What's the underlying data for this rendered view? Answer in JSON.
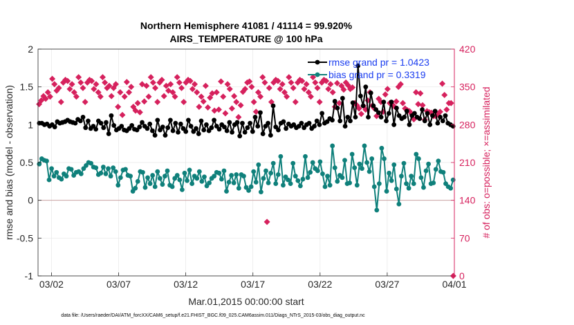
{
  "colors": {
    "rmse": "#000000",
    "bias": "#0f807b",
    "obs": "#d6215d",
    "legend_text": "#1a3df0",
    "grid": "#e6e6e6",
    "zero_line": "#c9a3a3"
  },
  "chart_data": {
    "type": "line",
    "title_line1": "Northern Hemisphere 41081 / 41114 = 99.920%",
    "title_line2": "AIRS_TEMPERATURE @ 100 hPa",
    "xlabel": "Mar.01,2015 00:00:00 start",
    "ylabel_left": "rmse and bias (model - observation)",
    "ylabel_right": "# of obs: o=possible; ×=assimilated",
    "footnote": "data file: /Users/raeder/DAI/ATM_forcXX/CAM6_setup/f.e21.FHIST_BGC.f09_025.CAM6assim.011/Diags_NTrS_2015-03/obs_diag_output.nc",
    "xlim": [
      0,
      31
    ],
    "ylim_left": [
      -1,
      2
    ],
    "ylim_right": [
      0,
      420
    ],
    "x_ticks": [
      1,
      6,
      11,
      16,
      21,
      26,
      31
    ],
    "x_tick_labels": [
      "03/02",
      "03/07",
      "03/12",
      "03/17",
      "03/22",
      "03/27",
      "04/01"
    ],
    "y_left_ticks": [
      -1,
      -0.5,
      0,
      0.5,
      1,
      1.5,
      2
    ],
    "y_left_tick_labels": [
      "-1",
      "-0.5",
      "0",
      "0.5",
      "1",
      "1.5",
      "2"
    ],
    "y_right_ticks": [
      0,
      70,
      140,
      210,
      280,
      350,
      420
    ],
    "y_right_tick_labels": [
      "0",
      "70",
      "140",
      "210",
      "280",
      "350",
      "420"
    ],
    "grid": true,
    "legend_position": "top-right",
    "legend": [
      {
        "series": "rmse",
        "label": "rmse grand pr = 1.0423"
      },
      {
        "series": "bias",
        "label": "bias grand pr = 0.3319"
      }
    ],
    "series": [
      {
        "name": "rmse",
        "axis": "left",
        "values": [
          1.02,
          1.02,
          1.0,
          1.01,
          0.98,
          1.0,
          0.97,
          1.04,
          1.02,
          1.03,
          1.04,
          1.06,
          1.04,
          1.03,
          1.02,
          1.07,
          1.05,
          1.1,
          0.96,
          1.05,
          0.95,
          0.98,
          0.94,
          1.05,
          1.02,
          0.96,
          1.03,
          0.88,
          1.12,
          0.99,
          0.93,
          0.95,
          0.98,
          0.93,
          0.92,
          0.95,
          0.99,
          0.94,
          0.93,
          0.97,
          1.03,
          0.98,
          0.95,
          1.01,
          0.92,
          0.86,
          1.06,
          0.93,
          0.97,
          0.86,
          0.96,
          1.06,
          0.92,
          1.02,
          0.9,
          1.01,
          0.95,
          0.91,
          1.06,
          0.98,
          0.91,
          0.95,
          0.88,
          1.05,
          0.93,
          1.0,
          0.92,
          0.96,
          1.06,
          0.98,
          0.94,
          1.0,
          0.97,
          0.92,
          1.03,
          0.9,
          1.0,
          1.03,
          0.85,
          1.02,
          0.9,
          0.96,
          1.02,
          0.91,
          1.1,
          0.98,
          1.16,
          0.88,
          0.98,
          1.02,
          0.86,
          1.25,
          0.97,
          0.93,
          1.02,
          1.04,
          0.95,
          1.01,
          0.98,
          1.0,
          0.96,
          0.98,
          1.02,
          0.96,
          1.0,
          1.02,
          0.95,
          0.98,
          1.05,
          1.0,
          1.15,
          1.02,
          1.04,
          1.08,
          1.06,
          1.31,
          1.22,
          1.05,
          1.35,
          0.98,
          1.1,
          1.05,
          1.29,
          1.1,
          1.78,
          1.38,
          1.25,
          1.5,
          1.1,
          1.42,
          1.25,
          1.2,
          1.16,
          1.1,
          1.3,
          1.05,
          1.15,
          1.3,
          1.0,
          1.22,
          1.12,
          1.08,
          1.1,
          1.18,
          1.0,
          1.12,
          1.15,
          1.1,
          1.08,
          1.2,
          1.05,
          1.15,
          1.0,
          1.12,
          1.18,
          1.02,
          1.1,
          1.05,
          1.12,
          1.02,
          1.0,
          0.98
        ]
      },
      {
        "name": "bias",
        "axis": "left",
        "values": [
          0.48,
          0.55,
          0.53,
          0.52,
          0.27,
          0.42,
          0.32,
          0.37,
          0.3,
          0.28,
          0.35,
          0.32,
          0.42,
          0.41,
          0.33,
          0.37,
          0.38,
          0.35,
          0.42,
          0.46,
          0.5,
          0.49,
          0.44,
          0.43,
          0.34,
          0.36,
          0.44,
          0.35,
          0.42,
          0.32,
          0.43,
          0.38,
          0.2,
          0.3,
          0.4,
          0.41,
          0.33,
          0.32,
          0.12,
          0.16,
          0.25,
          0.38,
          0.37,
          0.17,
          0.3,
          0.22,
          0.33,
          0.18,
          0.38,
          0.29,
          0.21,
          0.32,
          0.39,
          0.2,
          0.18,
          0.29,
          0.33,
          0.27,
          0.14,
          0.36,
          0.26,
          0.4,
          0.22,
          0.32,
          0.29,
          0.38,
          0.25,
          0.31,
          0.19,
          0.23,
          0.29,
          0.32,
          0.37,
          0.36,
          0.28,
          0.39,
          0.12,
          0.24,
          0.33,
          0.23,
          0.34,
          0.16,
          0.34,
          0.32,
          0.17,
          0.13,
          0.18,
          0.38,
          0.24,
          0.47,
          0.11,
          0.29,
          0.39,
          0.23,
          0.36,
          0.49,
          0.22,
          0.34,
          0.58,
          0.2,
          0.31,
          0.27,
          0.22,
          0.49,
          0.32,
          0.26,
          0.19,
          0.28,
          0.58,
          0.3,
          0.37,
          0.5,
          0.42,
          0.39,
          0.51,
          0.35,
          0.18,
          0.32,
          0.2,
          0.72,
          0.43,
          0.25,
          0.33,
          0.3,
          0.53,
          0.22,
          0.23,
          0.61,
          0.43,
          0.2,
          0.48,
          0.42,
          0.72,
          0.5,
          0.38,
          0.55,
          0.18,
          -0.13,
          0.22,
          0.69,
          0.55,
          0.12,
          0.36,
          0.26,
          0.47,
          0.15,
          -0.05,
          0.32,
          0.49,
          0.22,
          0.16,
          0.32,
          0.22,
          0.61,
          0.55,
          0.3,
          0.17,
          0.39,
          0.48,
          0.22,
          0.23,
          0.41,
          0.52,
          0.38,
          0.37,
          0.22,
          0.18,
          0.16,
          0.27
        ]
      },
      {
        "name": "obs_assimilated",
        "axis": "right",
        "values": [
          318,
          325,
          333,
          328,
          340,
          332,
          365,
          355,
          343,
          348,
          322,
          358,
          363,
          361,
          346,
          355,
          340,
          332,
          368,
          358,
          348,
          322,
          358,
          363,
          361,
          346,
          355,
          340,
          332,
          368,
          358,
          348,
          352,
          333,
          348,
          355,
          313,
          340,
          298,
          332,
          359,
          340,
          350,
          313,
          306,
          320,
          303,
          355,
          323,
          352,
          332,
          368,
          358,
          348,
          322,
          358,
          363,
          333,
          352,
          343,
          355,
          340,
          332,
          368,
          358,
          348,
          322,
          358,
          363,
          361,
          346,
          355,
          340,
          313,
          332,
          323,
          352,
          312,
          330,
          338,
          306,
          340,
          308,
          360,
          332,
          301,
          355,
          346,
          310,
          333,
          322,
          294,
          316,
          341,
          346,
          358,
          360,
          350,
          322,
          304,
          340,
          332,
          368,
          358,
          100,
          348,
          322,
          358,
          363,
          361,
          346,
          355,
          340,
          332,
          368,
          358,
          348,
          322,
          358,
          363,
          361,
          346,
          355,
          340,
          332,
          368,
          358,
          348,
          322,
          358,
          363,
          361,
          346,
          355,
          340,
          313,
          357,
          320,
          352,
          345,
          358,
          353,
          346,
          349,
          320,
          316,
          310,
          300,
          315,
          308,
          325,
          340,
          315,
          310,
          296,
          328,
          322,
          304,
          336,
          346,
          320,
          318,
          314,
          323,
          350,
          355,
          320,
          310,
          307,
          305,
          300,
          290,
          340,
          318,
          338,
          316,
          289,
          305,
          303,
          302,
          296,
          296,
          300,
          304,
          356,
          335,
          308,
          320,
          320,
          0
        ]
      }
    ]
  }
}
